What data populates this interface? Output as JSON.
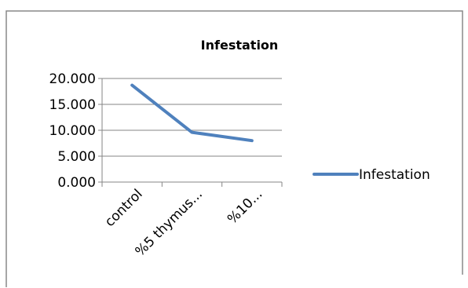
{
  "chart_data": {
    "type": "line",
    "title": "Infestation",
    "xlabel": "",
    "ylabel": "",
    "categories": [
      "control",
      "%5 thymus...",
      "%10..."
    ],
    "series": [
      {
        "name": "Infestation",
        "values": [
          18.7,
          9.6,
          8.0
        ],
        "color": "#4f81bd"
      }
    ],
    "y_ticks": [
      "0.000",
      "5.000",
      "10.000",
      "15.000",
      "20.000"
    ],
    "ylim": [
      0,
      20
    ],
    "grid": true,
    "legend_position": "right"
  }
}
